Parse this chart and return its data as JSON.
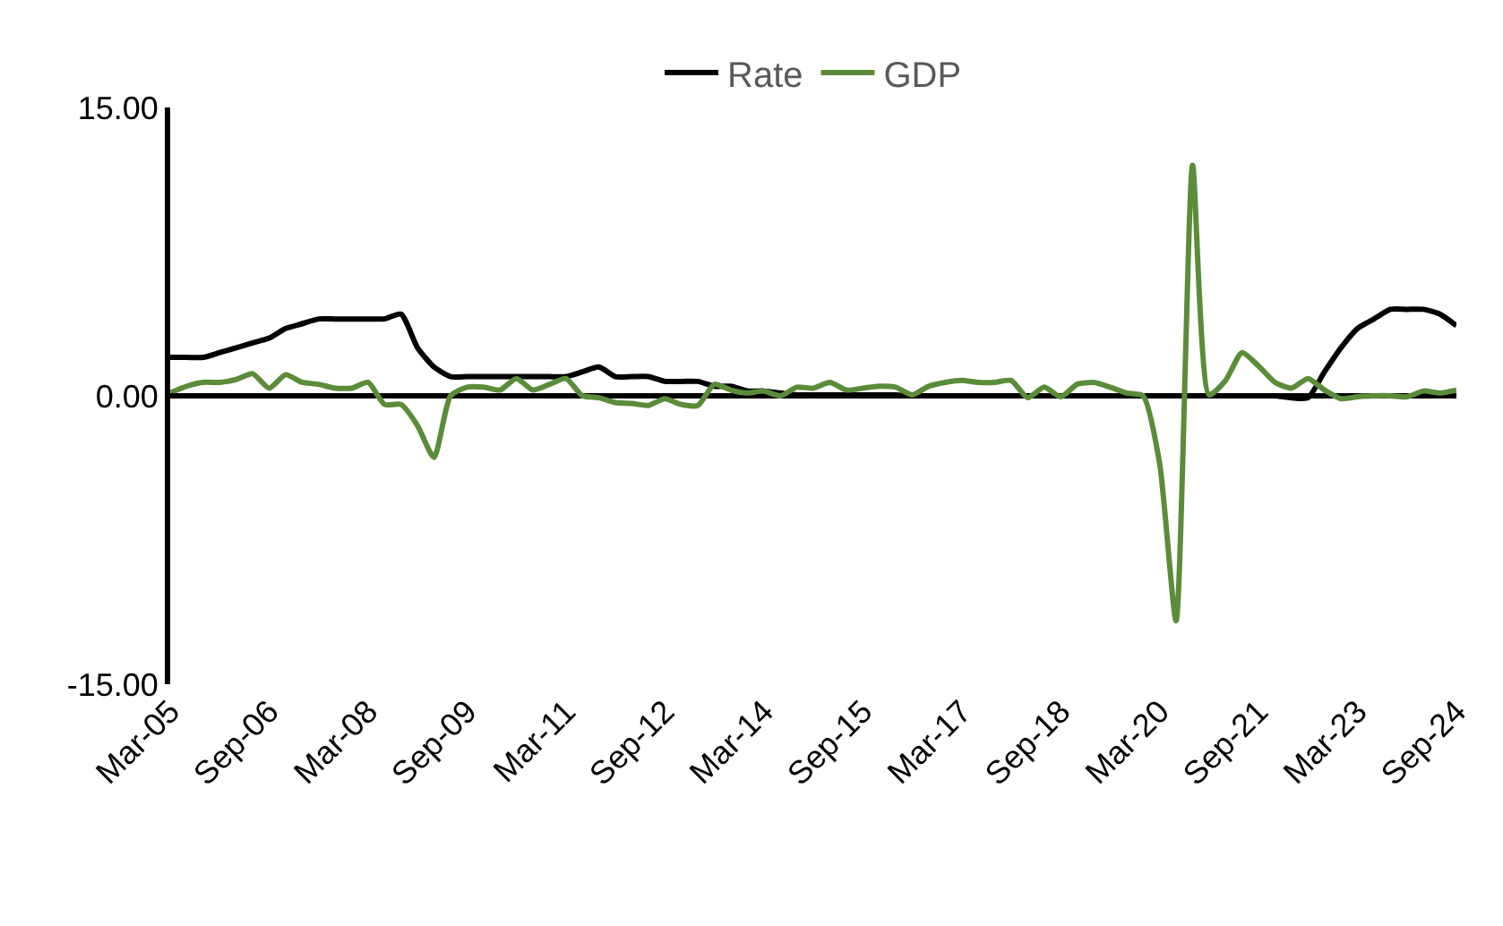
{
  "chart_data": {
    "type": "line",
    "categories": [
      "Mar-05",
      null,
      null,
      null,
      null,
      null,
      "Sep-06",
      null,
      null,
      null,
      null,
      null,
      "Mar-08",
      null,
      null,
      null,
      null,
      null,
      "Sep-09",
      null,
      null,
      null,
      null,
      null,
      "Mar-11",
      null,
      null,
      null,
      null,
      null,
      "Sep-12",
      null,
      null,
      null,
      null,
      null,
      "Mar-14",
      null,
      null,
      null,
      null,
      null,
      "Sep-15",
      null,
      null,
      null,
      null,
      null,
      "Mar-17",
      null,
      null,
      null,
      null,
      null,
      "Sep-18",
      null,
      null,
      null,
      null,
      null,
      "Mar-20",
      null,
      null,
      null,
      null,
      null,
      "Sep-21",
      null,
      null,
      null,
      null,
      null,
      "Mar-23",
      null,
      null,
      null,
      null,
      null,
      "Sep-24"
    ],
    "series": [
      {
        "name": "Rate",
        "color": "#000000",
        "values": [
          2.0,
          2.0,
          2.0,
          2.25,
          2.5,
          2.75,
          3.0,
          3.5,
          3.75,
          4.0,
          4.0,
          4.0,
          4.0,
          4.0,
          4.25,
          2.5,
          1.5,
          1.0,
          1.0,
          1.0,
          1.0,
          1.0,
          1.0,
          1.0,
          1.0,
          1.25,
          1.5,
          1.0,
          1.0,
          1.0,
          0.75,
          0.75,
          0.75,
          0.5,
          0.5,
          0.25,
          0.25,
          0.15,
          0.05,
          0.05,
          0.05,
          0.05,
          0.05,
          0.05,
          0.05,
          0,
          0,
          0,
          0,
          0,
          0,
          0,
          0,
          0,
          0,
          0,
          0,
          0,
          0,
          0,
          0,
          0,
          0,
          0,
          0,
          0,
          0,
          0,
          -0.1,
          -0.1,
          1.25,
          2.5,
          3.5,
          4.0,
          4.5,
          4.5,
          4.5,
          4.25,
          3.65
        ]
      },
      {
        "name": "GDP",
        "color": "#5b8c3a",
        "values": [
          0.15,
          0.5,
          0.7,
          0.7,
          0.85,
          1.15,
          0.4,
          1.1,
          0.7,
          0.6,
          0.4,
          0.4,
          0.7,
          -0.45,
          -0.45,
          -1.55,
          -3.2,
          0,
          0.45,
          0.45,
          0.3,
          0.9,
          0.3,
          0.6,
          0.9,
          0,
          -0.1,
          -0.35,
          -0.4,
          -0.5,
          -0.15,
          -0.45,
          -0.5,
          0.6,
          0.3,
          0.15,
          0.25,
          0,
          0.45,
          0.4,
          0.7,
          0.3,
          0.4,
          0.5,
          0.45,
          0.05,
          0.5,
          0.7,
          0.8,
          0.7,
          0.7,
          0.8,
          -0.1,
          0.45,
          -0.05,
          0.6,
          0.7,
          0.45,
          0.15,
          0,
          -3.5,
          -11.7,
          12.0,
          0.05,
          0.8,
          2.25,
          1.55,
          0.7,
          0.4,
          0.9,
          0.3,
          -0.15,
          -0.05,
          0,
          0,
          -0.05,
          0.25,
          0.15,
          0.3
        ]
      }
    ],
    "ylim": [
      -15,
      15
    ],
    "yticks": [
      {
        "value": 15,
        "label": "15.00"
      },
      {
        "value": 0,
        "label": "0.00"
      },
      {
        "value": -15,
        "label": "-15.00"
      }
    ],
    "legend": "top",
    "marker": "none",
    "line_style": "solid"
  }
}
